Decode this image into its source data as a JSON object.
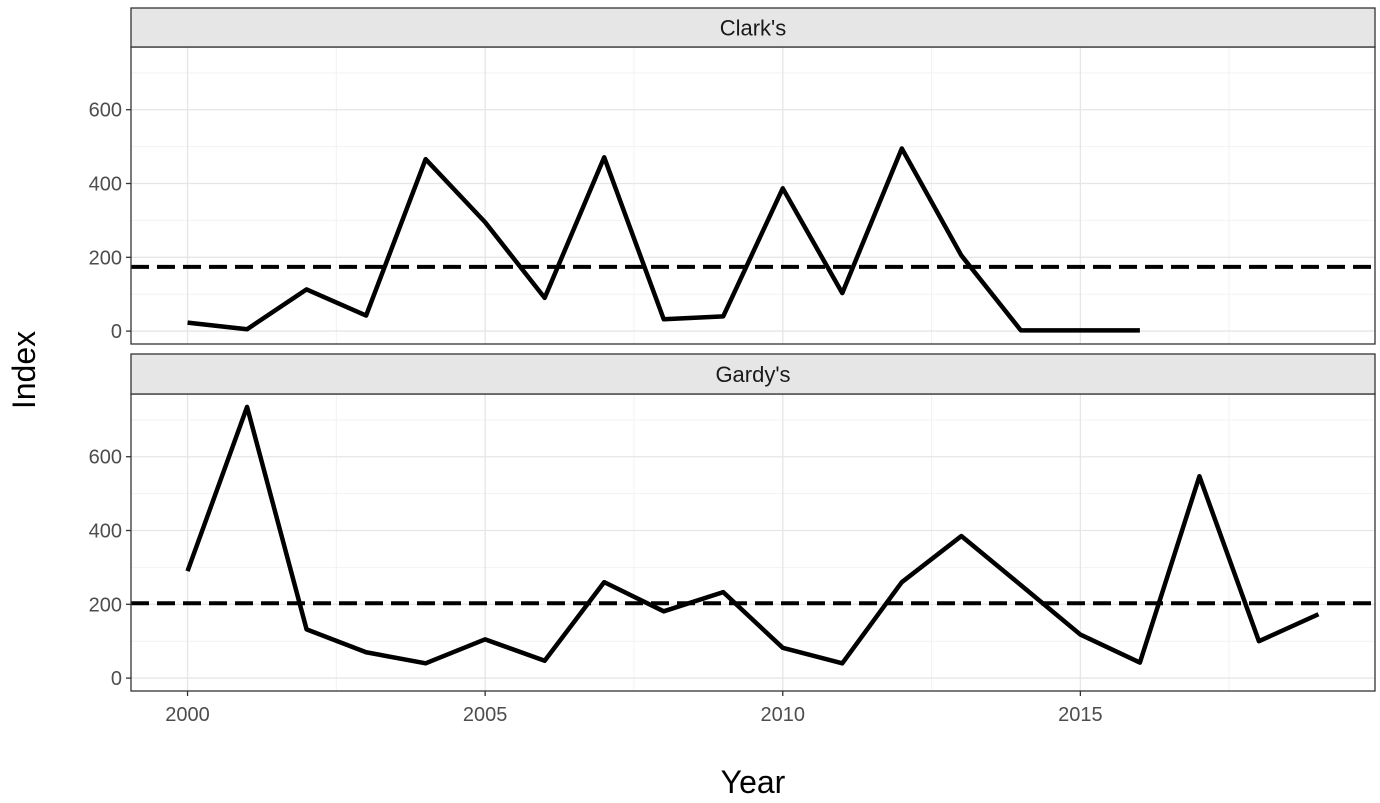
{
  "chart_data": {
    "type": "line",
    "xlabel": "Year",
    "ylabel": "Index",
    "xlim": [
      1999.05,
      2019.95
    ],
    "ylim": [
      -35,
      770
    ],
    "x_ticks": [
      2000,
      2005,
      2010,
      2015
    ],
    "y_ticks": [
      0,
      200,
      400,
      600
    ],
    "grid": true,
    "line_color": "#000000",
    "facets": [
      {
        "name": "Clark's",
        "x": [
          2000,
          2001,
          2002,
          2003,
          2004,
          2005,
          2006,
          2007,
          2008,
          2009,
          2010,
          2011,
          2012,
          2013,
          2014,
          2015,
          2016
        ],
        "values": [
          23,
          5,
          113,
          42,
          466,
          295,
          90,
          471,
          32,
          40,
          387,
          103,
          495,
          205,
          2,
          2,
          2
        ],
        "reference_line": 174
      },
      {
        "name": "Gardy's",
        "x": [
          2000,
          2001,
          2002,
          2003,
          2004,
          2005,
          2006,
          2007,
          2008,
          2009,
          2010,
          2011,
          2012,
          2013,
          2014,
          2015,
          2016,
          2017,
          2018,
          2019
        ],
        "values": [
          290,
          735,
          132,
          70,
          40,
          105,
          47,
          260,
          181,
          233,
          82,
          40,
          260,
          385,
          252,
          118,
          42,
          547,
          100,
          173
        ],
        "reference_line": 203
      }
    ]
  }
}
